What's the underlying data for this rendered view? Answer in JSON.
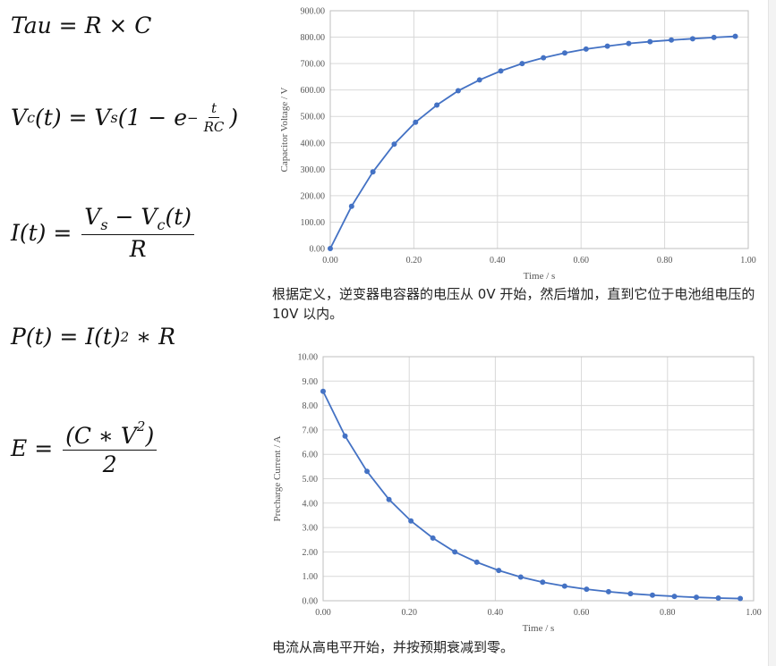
{
  "formulas": [
    [
      "Tau = R × C"
    ],
    [
      "V",
      {
        "sub": "c"
      },
      "(t) = V",
      {
        "sub": "s"
      },
      "(1 − e",
      {
        "sup": [
          "−",
          {
            "num": [
              "t"
            ],
            "den": [
              "RC"
            ]
          }
        ]
      },
      ")"
    ],
    [
      "I(t) = ",
      {
        "num": [
          "V",
          {
            "sub": "s"
          },
          " − V",
          {
            "sub": "c"
          },
          "(t)"
        ],
        "den": [
          "R"
        ]
      }
    ],
    [
      "P(t) = I(t)",
      {
        "sup": "2"
      },
      " ∗ R"
    ],
    [
      "E = ",
      {
        "num": [
          "(C ∗ V",
          {
            "sup": "2"
          },
          ")"
        ],
        "den": [
          "2"
        ]
      }
    ]
  ],
  "chart_data": [
    {
      "type": "line",
      "color": "#4472c4",
      "grid": true,
      "xlabel": "Time / s",
      "ylabel": "Capacitor Voltage / V",
      "x": [
        0,
        0.051,
        0.102,
        0.153,
        0.204,
        0.255,
        0.306,
        0.357,
        0.408,
        0.459,
        0.51,
        0.561,
        0.612,
        0.663,
        0.714,
        0.765,
        0.816,
        0.867,
        0.918,
        0.969
      ],
      "values": [
        0,
        160,
        290,
        395,
        478,
        543,
        597,
        638,
        672,
        700,
        722,
        740,
        755,
        766,
        776,
        783,
        789,
        794,
        799,
        803
      ],
      "xlim": [
        0,
        1
      ],
      "ylim": [
        0,
        900
      ],
      "xticks": [
        {
          "value": 0,
          "label": "0.00"
        },
        {
          "value": 0.2,
          "label": "0.20"
        },
        {
          "value": 0.4,
          "label": "0.40"
        },
        {
          "value": 0.6,
          "label": "0.60"
        },
        {
          "value": 0.8,
          "label": "0.80"
        },
        {
          "value": 1,
          "label": "1.00"
        }
      ],
      "yticks": [
        {
          "value": 0,
          "label": "0.00"
        },
        {
          "value": 100,
          "label": "100.00"
        },
        {
          "value": 200,
          "label": "200.00"
        },
        {
          "value": 300,
          "label": "300.00"
        },
        {
          "value": 400,
          "label": "400.00"
        },
        {
          "value": 500,
          "label": "500.00"
        },
        {
          "value": 600,
          "label": "600.00"
        },
        {
          "value": 700,
          "label": "700.00"
        },
        {
          "value": 800,
          "label": "800.00"
        },
        {
          "value": 900,
          "label": "900.00"
        }
      ]
    },
    {
      "type": "line",
      "color": "#4472c4",
      "grid": true,
      "xlabel": "Time / s",
      "ylabel": "Precharge Current / A",
      "x": [
        0,
        0.051,
        0.102,
        0.153,
        0.204,
        0.255,
        0.306,
        0.357,
        0.408,
        0.459,
        0.51,
        0.561,
        0.612,
        0.663,
        0.714,
        0.765,
        0.816,
        0.867,
        0.918,
        0.969
      ],
      "values": [
        8.58,
        6.75,
        5.3,
        4.15,
        3.27,
        2.57,
        2.0,
        1.58,
        1.24,
        0.97,
        0.76,
        0.6,
        0.47,
        0.37,
        0.29,
        0.23,
        0.18,
        0.14,
        0.11,
        0.09
      ],
      "xlim": [
        0,
        1
      ],
      "ylim": [
        0,
        10
      ],
      "xticks": [
        {
          "value": 0,
          "label": "0.00"
        },
        {
          "value": 0.2,
          "label": "0.20"
        },
        {
          "value": 0.4,
          "label": "0.40"
        },
        {
          "value": 0.6,
          "label": "0.60"
        },
        {
          "value": 0.8,
          "label": "0.80"
        },
        {
          "value": 1,
          "label": "1.00"
        }
      ],
      "yticks": [
        {
          "value": 0,
          "label": "0.00"
        },
        {
          "value": 1,
          "label": "1.00"
        },
        {
          "value": 2,
          "label": "2.00"
        },
        {
          "value": 3,
          "label": "3.00"
        },
        {
          "value": 4,
          "label": "4.00"
        },
        {
          "value": 5,
          "label": "5.00"
        },
        {
          "value": 6,
          "label": "6.00"
        },
        {
          "value": 7,
          "label": "7.00"
        },
        {
          "value": 8,
          "label": "8.00"
        },
        {
          "value": 9,
          "label": "9.00"
        },
        {
          "value": 10,
          "label": "10.00"
        }
      ]
    }
  ],
  "captions": [
    "根据定义，逆变器电容器的电压从 0V 开始，然后增加，直到它位于电池组电压的 10V 以内。",
    "电流从高电平开始，并按预期衰减到零。"
  ]
}
